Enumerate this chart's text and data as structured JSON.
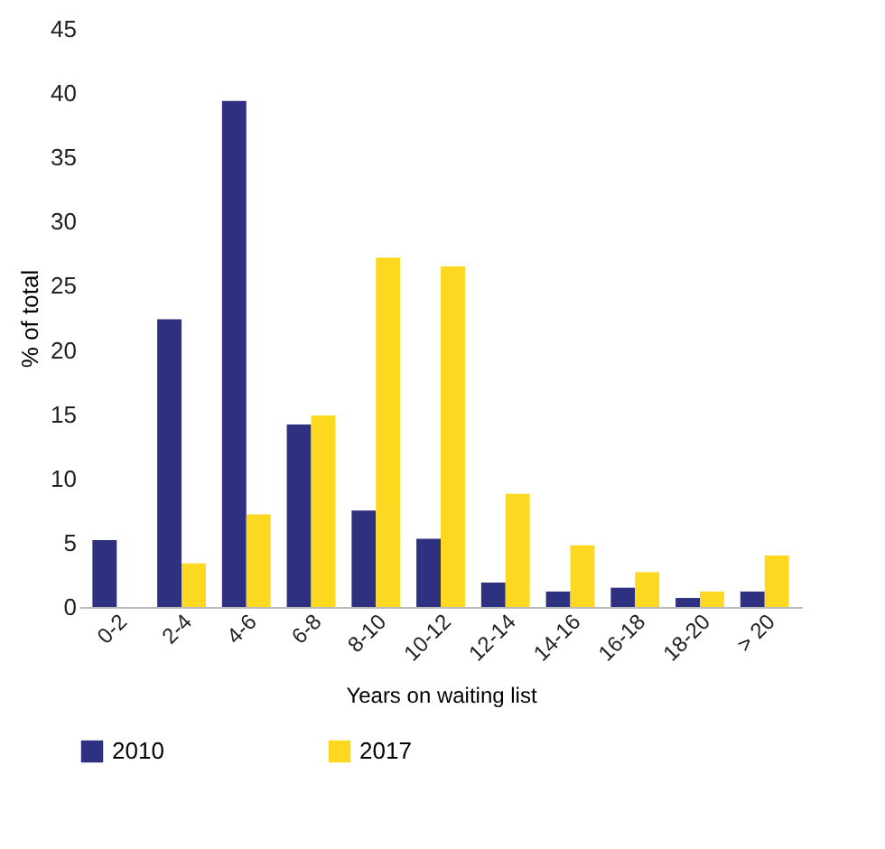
{
  "chart_data": {
    "type": "bar",
    "xlabel": "Years on waiting list",
    "ylabel": "% of total",
    "categories": [
      "0-2",
      "2-4",
      "4-6",
      "6-8",
      "8-10",
      "10-12",
      "12-14",
      "14-16",
      "16-18",
      "18-20",
      "> 20"
    ],
    "series": [
      {
        "name": "2010",
        "color": "#2e3180",
        "values": [
          5.2,
          22.4,
          39.4,
          14.2,
          7.5,
          5.3,
          1.9,
          1.2,
          1.5,
          0.7,
          1.2
        ]
      },
      {
        "name": "2017",
        "color": "#fdd820",
        "values": [
          0,
          3.4,
          7.2,
          14.9,
          27.2,
          26.5,
          8.8,
          4.8,
          2.7,
          1.2,
          4.0
        ]
      }
    ],
    "ylim": [
      0,
      45
    ],
    "yticks": [
      0,
      5,
      10,
      15,
      20,
      25,
      30,
      35,
      40,
      45
    ],
    "grid": false,
    "legend": "bottom"
  }
}
